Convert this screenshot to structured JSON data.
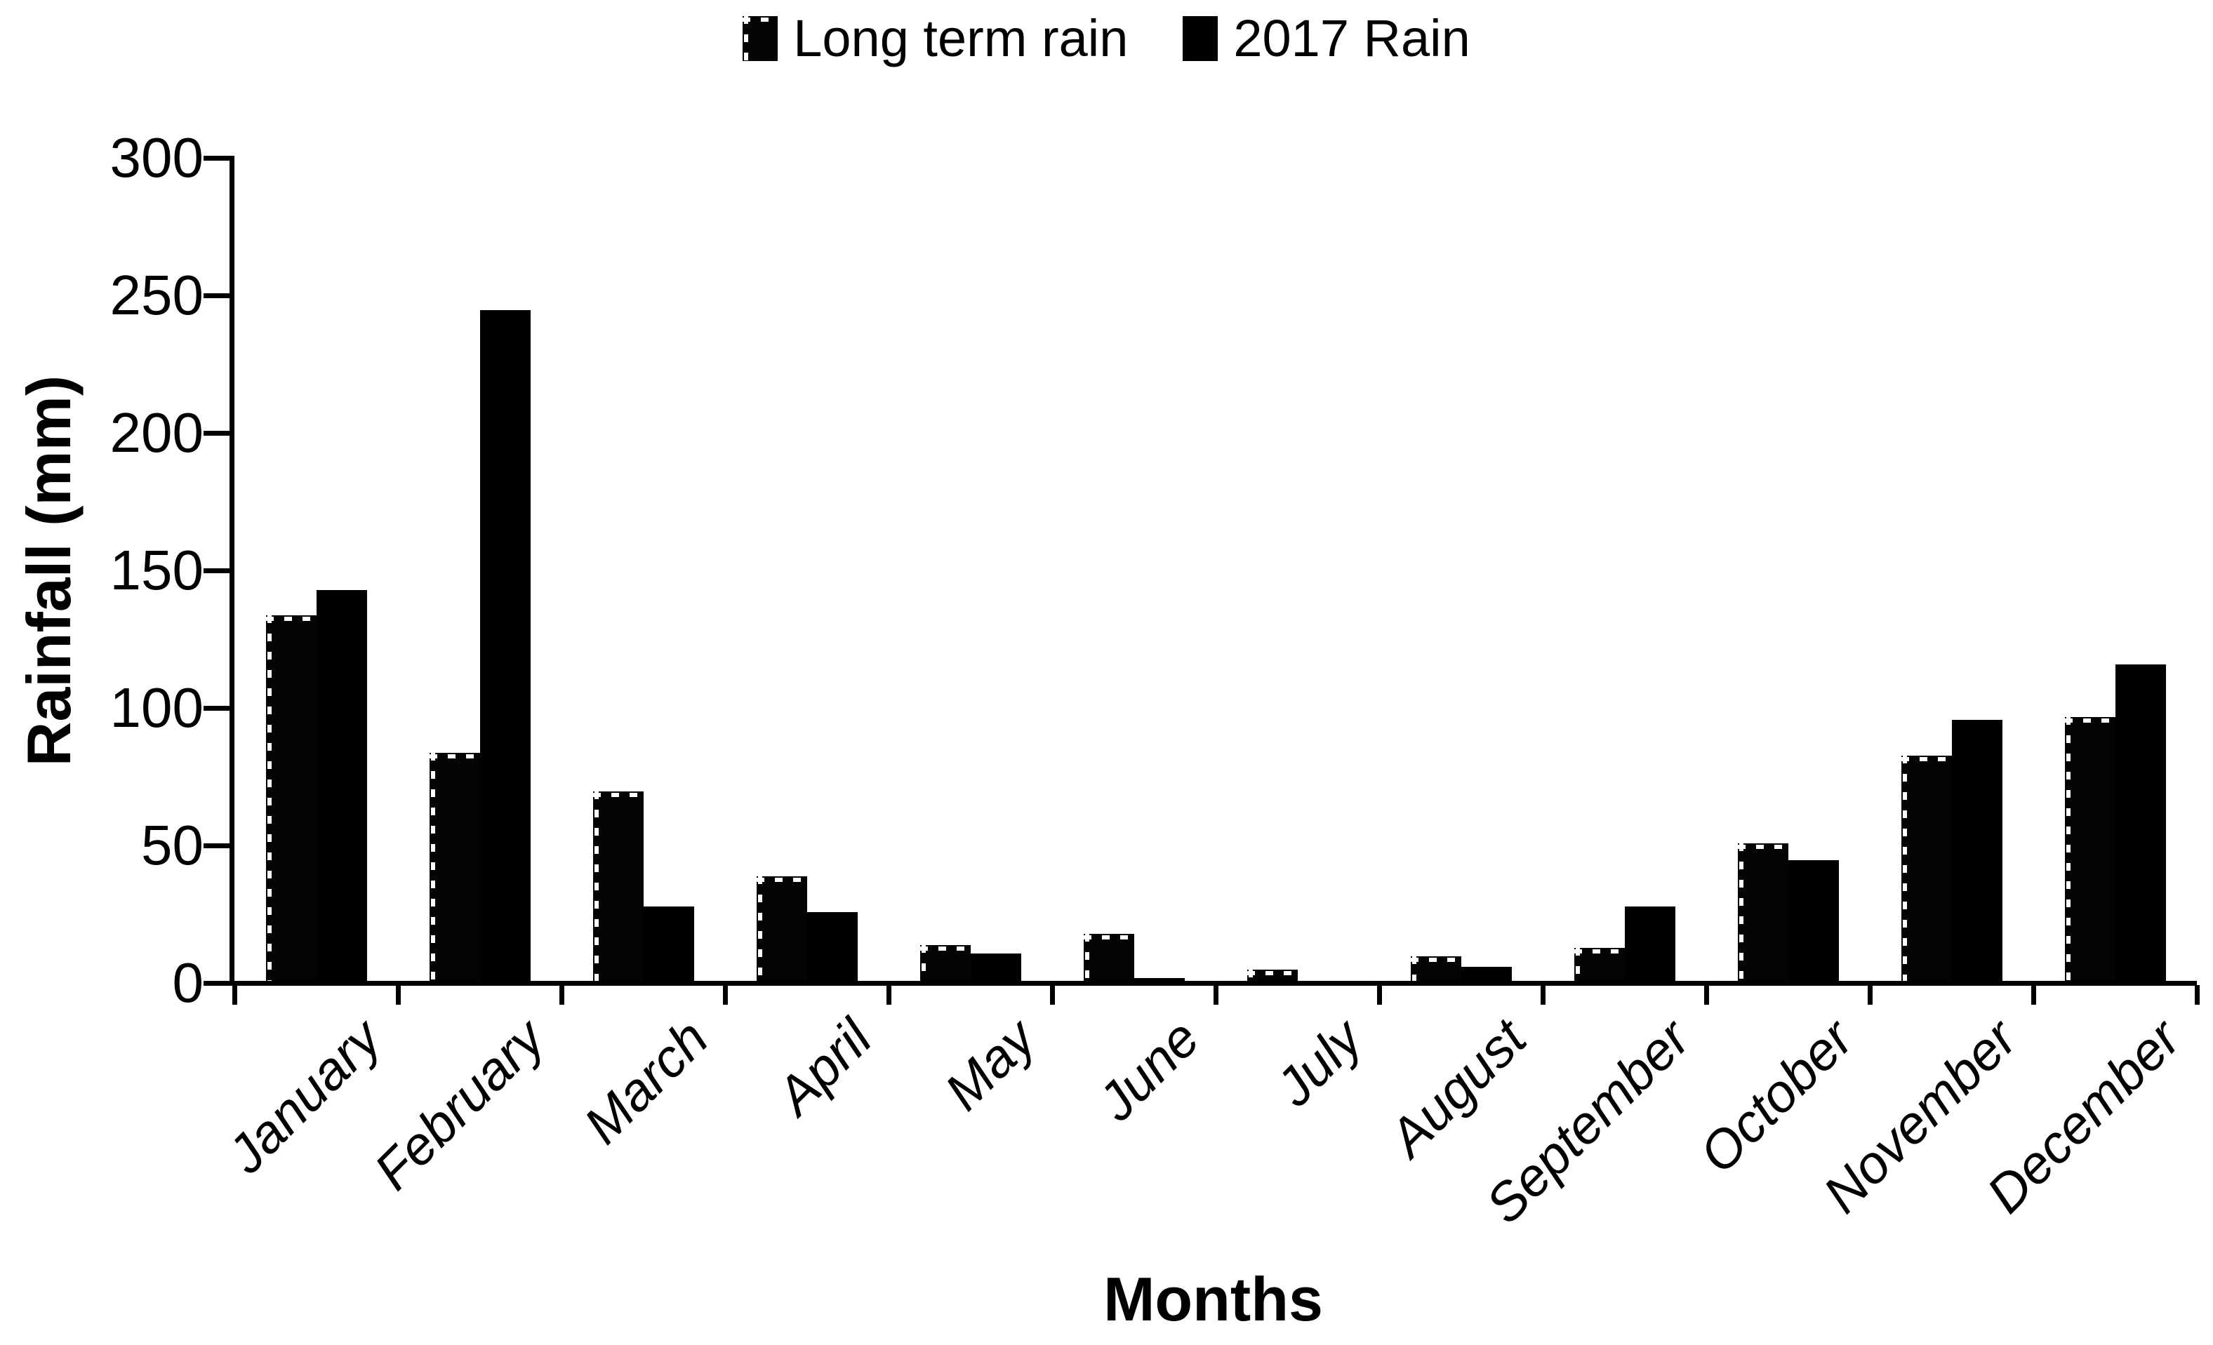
{
  "chart_data": {
    "type": "bar",
    "title": "",
    "categories": [
      "January",
      "February",
      "March",
      "April",
      "May",
      "June",
      "July",
      "August",
      "September",
      "October",
      "November",
      "December"
    ],
    "series": [
      {
        "name": "Long term rain",
        "pattern": "solid-black-dashed-edge",
        "values": [
          133,
          83,
          69,
          38,
          13,
          17,
          4,
          9,
          12,
          50,
          82,
          96
        ]
      },
      {
        "name": "2017 Rain",
        "pattern": "white-dot-grid-on-black",
        "values": [
          142,
          244,
          27,
          25,
          10,
          1,
          0,
          5,
          27,
          44,
          95,
          115
        ]
      }
    ],
    "xlabel": "Months",
    "ylabel": "Rainfall (mm)",
    "ylim": [
      0,
      300
    ],
    "yticks": [
      0,
      50,
      100,
      150,
      200,
      250,
      300
    ],
    "grid": false,
    "legend_position": "top-center",
    "colors": {
      "foreground": "#000000",
      "background": "#ffffff"
    }
  }
}
